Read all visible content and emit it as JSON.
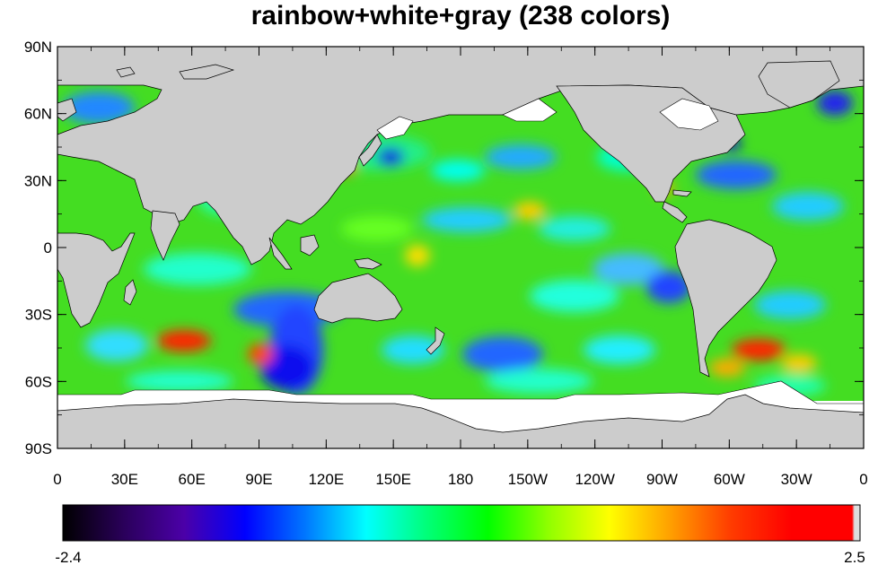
{
  "title": "rainbow+white+gray (238 colors)",
  "map": {
    "lat_ticks": [
      "90N",
      "60N",
      "30N",
      "0",
      "30S",
      "60S",
      "90S"
    ],
    "lon_ticks": [
      "0",
      "30E",
      "60E",
      "90E",
      "120E",
      "150E",
      "180",
      "150W",
      "120W",
      "90W",
      "60W",
      "30W",
      "0"
    ],
    "land_color": "#cccccc",
    "ice_color": "#ffffff",
    "ocean_base_color": "#44dd22"
  },
  "colorbar": {
    "min_label": "-2.4",
    "max_label": "2.5",
    "num_colors": 238,
    "stops": [
      "#000000",
      "#2a005a",
      "#4b00a8",
      "#0000ff",
      "#0078ff",
      "#00ffff",
      "#00ff78",
      "#00ff00",
      "#90ff00",
      "#ffff00",
      "#ffa000",
      "#ff3c00",
      "#ff0000",
      "#dddddd"
    ]
  }
}
